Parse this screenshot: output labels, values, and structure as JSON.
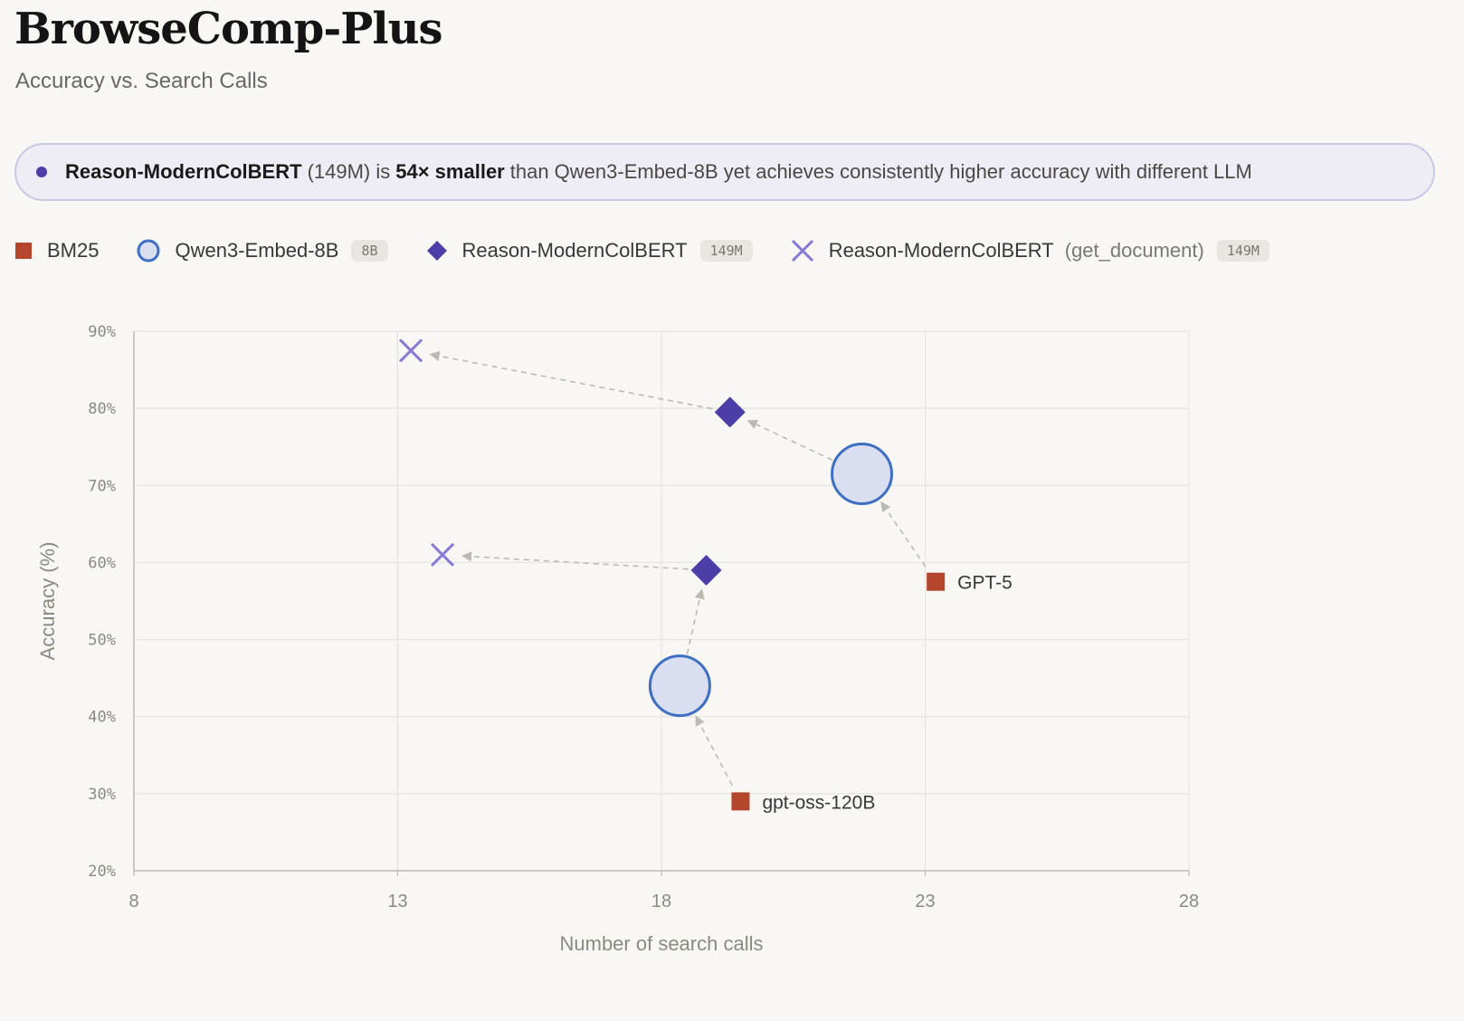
{
  "header": {
    "title": "BrowseComp-Plus",
    "subtitle": "Accuracy vs. Search Calls"
  },
  "callout": {
    "model": "Reason-ModernColBERT",
    "params": "(149M) is",
    "emphasis": "54× smaller",
    "rest": "than Qwen3-Embed-8B yet achieves consistently higher accuracy with different LLM"
  },
  "legend": [
    {
      "key": "bm25",
      "label": "BM25",
      "badge": "",
      "note": ""
    },
    {
      "key": "qwen",
      "label": "Qwen3-Embed-8B",
      "badge": "8B",
      "note": ""
    },
    {
      "key": "rmc",
      "label": "Reason-ModernColBERT",
      "badge": "149M",
      "note": ""
    },
    {
      "key": "rmcdoc",
      "label": "Reason-ModernColBERT",
      "badge": "149M",
      "note": "(get_document)"
    }
  ],
  "colors": {
    "bm25": "#b5462e",
    "qwen_stroke": "#3f6fc2",
    "qwen_fill": "#d9dff0",
    "rmc": "#4b3ea6",
    "rmcdoc": "#8b78d6",
    "grid": "#e6e4df",
    "axis": "#bdbab3",
    "arrow": "#bdbab3"
  },
  "chart_data": {
    "type": "scatter",
    "title": "Accuracy vs. Search Calls",
    "xlabel": "Number of search calls",
    "ylabel": "Accuracy (%)",
    "xlim": [
      8,
      28
    ],
    "ylim": [
      20,
      90
    ],
    "xticks": [
      8,
      13,
      18,
      23,
      28
    ],
    "yticks": [
      20,
      30,
      40,
      50,
      60,
      70,
      80,
      90
    ],
    "ytick_labels": [
      "20%",
      "30%",
      "40%",
      "50%",
      "60%",
      "70%",
      "80%",
      "90%"
    ],
    "grid": true,
    "series": [
      {
        "name": "BM25",
        "marker": "square",
        "points": [
          {
            "x": 23.2,
            "y": 57.5,
            "label": "GPT-5"
          },
          {
            "x": 19.5,
            "y": 29.0,
            "label": "gpt-oss-120B"
          }
        ]
      },
      {
        "name": "Qwen3-Embed-8B",
        "marker": "circle",
        "points": [
          {
            "x": 21.8,
            "y": 71.5
          },
          {
            "x": 18.35,
            "y": 44.0
          }
        ]
      },
      {
        "name": "Reason-ModernColBERT",
        "marker": "diamond",
        "points": [
          {
            "x": 19.3,
            "y": 79.5
          },
          {
            "x": 18.85,
            "y": 59.0
          }
        ]
      },
      {
        "name": "Reason-ModernColBERT (get_document)",
        "marker": "x",
        "points": [
          {
            "x": 13.25,
            "y": 87.5
          },
          {
            "x": 13.85,
            "y": 61.0
          }
        ]
      }
    ],
    "arrows": [
      {
        "from": [
          23.2,
          57.5
        ],
        "to": [
          21.8,
          71.5
        ]
      },
      {
        "from": [
          21.8,
          71.5
        ],
        "to": [
          19.3,
          79.5
        ]
      },
      {
        "from": [
          19.3,
          79.5
        ],
        "to": [
          13.25,
          87.5
        ]
      },
      {
        "from": [
          19.5,
          29.0
        ],
        "to": [
          18.35,
          44.0
        ]
      },
      {
        "from": [
          18.35,
          44.0
        ],
        "to": [
          18.85,
          59.0
        ]
      },
      {
        "from": [
          18.85,
          59.0
        ],
        "to": [
          13.85,
          61.0
        ]
      }
    ]
  }
}
